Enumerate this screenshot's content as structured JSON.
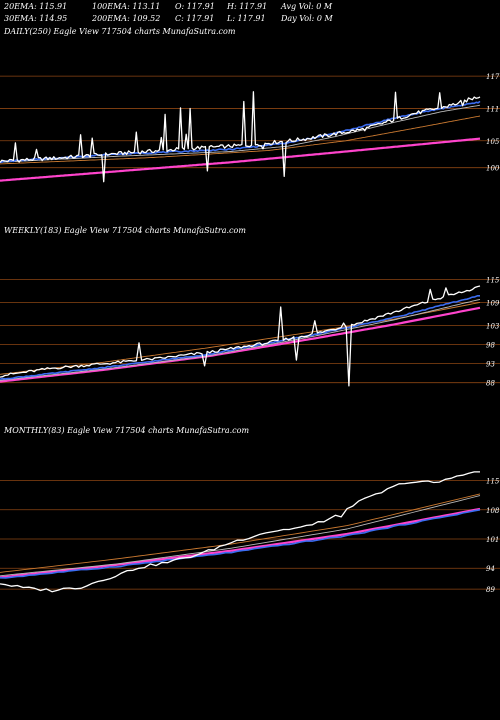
{
  "header": {
    "line1": [
      "20EMA: 115.91",
      "100EMA: 113.11",
      "O: 117.91",
      "H: 117.91",
      "Avg Vol: 0  M"
    ],
    "line2": [
      "30EMA: 114.95",
      "200EMA: 109.52",
      "C: 117.91",
      "L: 117.91",
      "Day Vol: 0  M"
    ]
  },
  "colors": {
    "background": "#000000",
    "text": "#ffffff",
    "grid": "#8b4513",
    "price": "#ffffff",
    "ema_fast": "#3b6cf0",
    "ema_mid": "#b8b8b8",
    "ema_slow": "#c87830",
    "ema_200": "#ff44cc"
  },
  "chart_data": [
    {
      "type": "line",
      "panel": "daily",
      "title": "DAILY(250) Eagle  View  717504  charts MunafaSutra.com",
      "y_ticks": [
        117,
        111,
        105,
        100
      ],
      "ylim": [
        94,
        120
      ],
      "x_count": 250,
      "series": [
        {
          "key": "price",
          "kind": "price",
          "base": [
            [
              0,
              101.2
            ],
            [
              30,
              101.8
            ],
            [
              60,
              102.6
            ],
            [
              100,
              103.6
            ],
            [
              130,
              104.2
            ],
            [
              160,
              105.4
            ],
            [
              190,
              107.2
            ],
            [
              215,
              110.0
            ],
            [
              235,
              111.6
            ],
            [
              250,
              113.3
            ]
          ],
          "spikes": [
            [
              8,
              104.6
            ],
            [
              19,
              103.4
            ],
            [
              42,
              106.1
            ],
            [
              48,
              105.5
            ],
            [
              54,
              97.4
            ],
            [
              71,
              106.6
            ],
            [
              84,
              105.6
            ],
            [
              86,
              109.9
            ],
            [
              94,
              111.1
            ],
            [
              97,
              106.2
            ],
            [
              99,
              111.0
            ],
            [
              108,
              99.4
            ],
            [
              118,
              104.0
            ],
            [
              127,
              112.3
            ],
            [
              132,
              114.1
            ],
            [
              134,
              104.3
            ],
            [
              137,
              103.5
            ],
            [
              148,
              98.4
            ],
            [
              152,
              104.9
            ],
            [
              206,
              114.0
            ],
            [
              229,
              113.9
            ],
            [
              241,
              111.5
            ]
          ]
        },
        {
          "key": "ema_fast",
          "kind": "blue",
          "base": [
            [
              0,
              101.1
            ],
            [
              60,
              102.5
            ],
            [
              120,
              103.4
            ],
            [
              150,
              104.6
            ],
            [
              175,
              106.4
            ],
            [
              205,
              109.2
            ],
            [
              230,
              111.0
            ],
            [
              250,
              112.2
            ]
          ]
        },
        {
          "key": "ema_mid",
          "kind": "grey",
          "base": [
            [
              0,
              101.0
            ],
            [
              60,
              102.1
            ],
            [
              120,
              103.0
            ],
            [
              150,
              104.0
            ],
            [
              175,
              105.8
            ],
            [
              205,
              108.4
            ],
            [
              230,
              110.4
            ],
            [
              250,
              111.6
            ]
          ]
        },
        {
          "key": "ema_slow",
          "kind": "orange",
          "base": [
            [
              0,
              100.7
            ],
            [
              80,
              101.9
            ],
            [
              140,
              103.2
            ],
            [
              180,
              105.0
            ],
            [
              220,
              107.6
            ],
            [
              250,
              109.6
            ]
          ]
        },
        {
          "key": "ema_200",
          "kind": "magenta",
          "base": [
            [
              0,
              97.6
            ],
            [
              60,
              99.3
            ],
            [
              120,
              101.0
            ],
            [
              180,
              103.0
            ],
            [
              250,
              105.4
            ]
          ]
        }
      ]
    },
    {
      "type": "line",
      "panel": "weekly",
      "title": "WEEKLY(183) Eagle  View  717504  charts MunafaSutra.com",
      "y_ticks": [
        115,
        109,
        103,
        98,
        93,
        88
      ],
      "ylim": [
        84,
        118
      ],
      "x_count": 183,
      "series": [
        {
          "key": "price",
          "kind": "price",
          "base": [
            [
              0,
              89.8
            ],
            [
              20,
              91.8
            ],
            [
              40,
              93.0
            ],
            [
              60,
              94.3
            ],
            [
              80,
              96.0
            ],
            [
              100,
              98.2
            ],
            [
              120,
              100.8
            ],
            [
              135,
              103.3
            ],
            [
              150,
              106.4
            ],
            [
              165,
              109.6
            ],
            [
              183,
              113.0
            ]
          ],
          "spikes": [
            [
              53,
              98.4
            ],
            [
              78,
              92.4
            ],
            [
              107,
              107.8
            ],
            [
              113,
              93.9
            ],
            [
              120,
              104.2
            ],
            [
              131,
              103.6
            ],
            [
              133,
              87.2
            ],
            [
              164,
              112.4
            ],
            [
              170,
              112.8
            ],
            [
              177,
              111.8
            ]
          ]
        },
        {
          "key": "ema_fast",
          "kind": "blue",
          "base": [
            [
              0,
              88.9
            ],
            [
              40,
              92.0
            ],
            [
              80,
              95.5
            ],
            [
              120,
              100.6
            ],
            [
              150,
              105.0
            ],
            [
              183,
              110.8
            ]
          ]
        },
        {
          "key": "ema_mid",
          "kind": "grey",
          "base": [
            [
              0,
              88.6
            ],
            [
              40,
              91.6
            ],
            [
              80,
              95.1
            ],
            [
              120,
              100.2
            ],
            [
              150,
              104.4
            ],
            [
              183,
              109.8
            ]
          ]
        },
        {
          "key": "ema_slow",
          "kind": "orange",
          "base": [
            [
              0,
              90.2
            ],
            [
              40,
              93.4
            ],
            [
              80,
              97.2
            ],
            [
              120,
              101.4
            ],
            [
              150,
              104.6
            ],
            [
              183,
              109.0
            ]
          ]
        },
        {
          "key": "ema_200",
          "kind": "magenta",
          "base": [
            [
              0,
              88.3
            ],
            [
              40,
              91.4
            ],
            [
              80,
              95.0
            ],
            [
              120,
              99.6
            ],
            [
              150,
              103.2
            ],
            [
              183,
              107.6
            ]
          ]
        }
      ]
    },
    {
      "type": "line",
      "panel": "monthly",
      "title": "MONTHLY(83) Eagle  View  717504  charts MunafaSutra.com",
      "y_ticks": [
        115,
        108,
        101,
        94,
        89
      ],
      "ylim": [
        84,
        118
      ],
      "x_count": 83,
      "series": [
        {
          "key": "price",
          "kind": "price",
          "base": [
            [
              0,
              90.4
            ],
            [
              4,
              89.3
            ],
            [
              9,
              88.7
            ],
            [
              14,
              89.5
            ],
            [
              19,
              91.8
            ],
            [
              24,
              94.2
            ],
            [
              29,
              95.4
            ],
            [
              35,
              97.6
            ],
            [
              40,
              100.2
            ],
            [
              46,
              102.6
            ],
            [
              52,
              103.8
            ],
            [
              57,
              105.8
            ],
            [
              61,
              109.2
            ],
            [
              66,
              112.2
            ],
            [
              70,
              114.6
            ],
            [
              76,
              114.6
            ],
            [
              80,
              116.6
            ],
            [
              83,
              117.0
            ]
          ],
          "spikes": [
            [
              54,
              104.4
            ],
            [
              59,
              106.3
            ]
          ]
        },
        {
          "key": "ema_fast",
          "kind": "blue",
          "base": [
            [
              0,
              91.6
            ],
            [
              20,
              94.4
            ],
            [
              40,
              97.8
            ],
            [
              60,
              101.8
            ],
            [
              83,
              108.0
            ]
          ]
        },
        {
          "key": "ema_mid",
          "kind": "grey",
          "base": [
            [
              0,
              92.2
            ],
            [
              20,
              95.0
            ],
            [
              40,
              98.8
            ],
            [
              60,
              103.4
            ],
            [
              83,
              111.4
            ]
          ]
        },
        {
          "key": "ema_slow",
          "kind": "orange",
          "base": [
            [
              0,
              93.0
            ],
            [
              20,
              96.2
            ],
            [
              40,
              99.8
            ],
            [
              60,
              104.2
            ],
            [
              83,
              111.8
            ]
          ]
        },
        {
          "key": "ema_200",
          "kind": "magenta",
          "base": [
            [
              0,
              91.8
            ],
            [
              20,
              94.8
            ],
            [
              40,
              98.2
            ],
            [
              60,
              102.2
            ],
            [
              83,
              108.2
            ]
          ]
        }
      ]
    }
  ]
}
